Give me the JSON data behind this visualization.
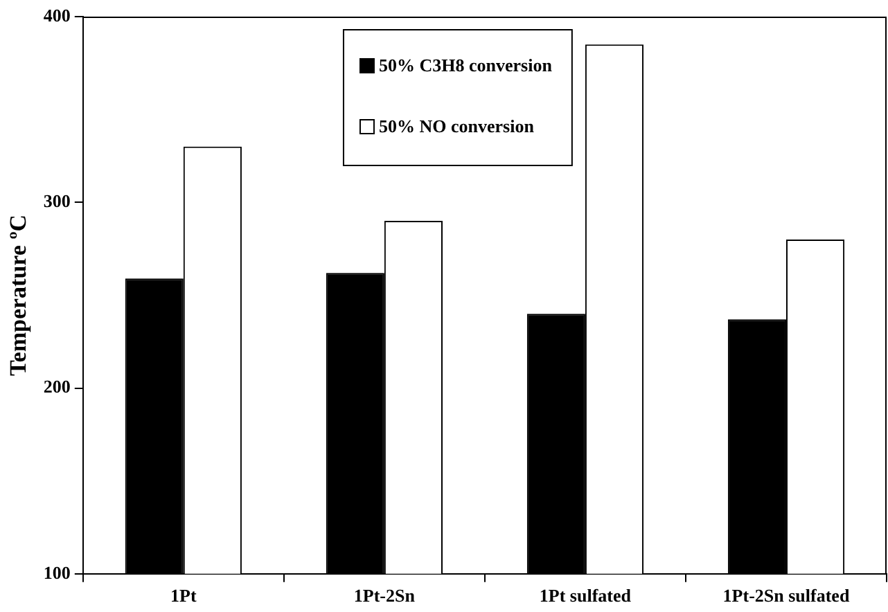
{
  "chart_data": {
    "type": "bar",
    "ylabel": "Temperature ºC",
    "categories": [
      "1Pt",
      "1Pt-2Sn",
      "1Pt sulfated",
      "1Pt-2Sn sulfated"
    ],
    "series": [
      {
        "name": "50% C3H8 conversion",
        "color": "#000000",
        "values": [
          259,
          262,
          240,
          237
        ]
      },
      {
        "name": "50% NO conversion",
        "color": "#ffffff",
        "values": [
          330,
          290,
          385,
          280
        ]
      }
    ],
    "ylim": [
      100,
      400
    ],
    "yticks": [
      100,
      200,
      300,
      400
    ],
    "grid": false,
    "legend": "top"
  }
}
